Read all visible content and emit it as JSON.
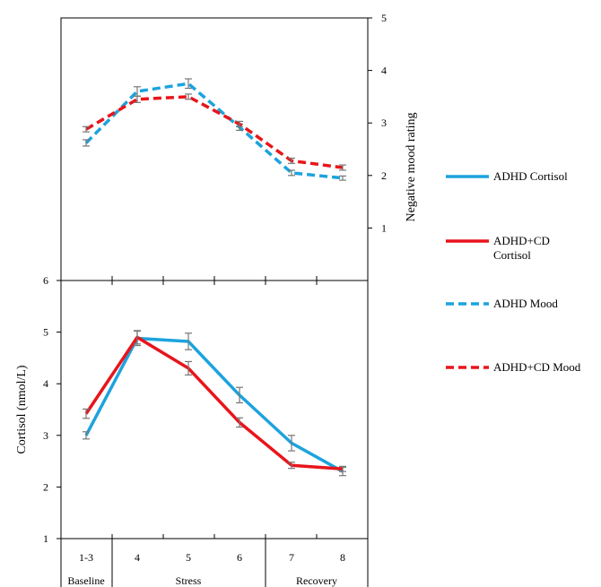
{
  "chart_data": {
    "type": "line",
    "x_positions": [
      "1-3",
      "4",
      "5",
      "6",
      "7",
      "8"
    ],
    "groups": [
      {
        "label": "Baseline",
        "positions": [
          "1-3"
        ]
      },
      {
        "label": "Stress",
        "positions": [
          "4",
          "5",
          "6"
        ]
      },
      {
        "label": "Recovery",
        "positions": [
          "7",
          "8"
        ]
      }
    ],
    "mood_panel": {
      "ylabel": "Negative mood rating",
      "ylim": [
        0,
        5
      ],
      "yticks": [
        "1",
        "2",
        "3",
        "4",
        "5"
      ],
      "y_axis_side": "right",
      "series": [
        {
          "name": "ADHD Mood",
          "color": "#1ca3de",
          "dash": "dashed",
          "values": [
            2.62,
            3.6,
            3.75,
            2.92,
            2.05,
            1.95
          ],
          "errors": [
            0.06,
            0.09,
            0.09,
            0.06,
            0.05,
            0.04
          ]
        },
        {
          "name": "ADHD+CD Mood",
          "color": "#e8151b",
          "dash": "dashed",
          "values": [
            2.88,
            3.45,
            3.5,
            2.98,
            2.28,
            2.15
          ],
          "errors": [
            0.05,
            0.06,
            0.05,
            0.05,
            0.05,
            0.05
          ]
        }
      ]
    },
    "cortisol_panel": {
      "ylabel": "Cortisol (nmol/L)",
      "ylim": [
        1,
        6
      ],
      "yticks": [
        "1",
        "2",
        "3",
        "4",
        "5",
        "6"
      ],
      "y_axis_side": "left",
      "series": [
        {
          "name": "ADHD Cortisol",
          "color": "#1ca3de",
          "dash": "solid",
          "values": [
            3.0,
            4.88,
            4.82,
            3.78,
            2.85,
            2.3
          ],
          "errors": [
            0.07,
            0.14,
            0.16,
            0.15,
            0.15,
            0.08
          ]
        },
        {
          "name": "ADHD+CD Cortisol",
          "color": "#e8151b",
          "dash": "solid",
          "values": [
            3.42,
            4.9,
            4.3,
            3.25,
            2.42,
            2.35
          ],
          "errors": [
            0.09,
            0.13,
            0.13,
            0.09,
            0.06,
            0.05
          ]
        }
      ]
    },
    "legend": {
      "placement": "right",
      "items": [
        {
          "label_lines": [
            "ADHD Cortisol"
          ],
          "color": "#1ca3de",
          "dash": "solid"
        },
        {
          "label_lines": [
            "ADHD+CD",
            "Cortisol"
          ],
          "color": "#e8151b",
          "dash": "solid"
        },
        {
          "label_lines": [
            "ADHD Mood"
          ],
          "color": "#1ca3de",
          "dash": "dashed"
        },
        {
          "label_lines": [
            "ADHD+CD Mood"
          ],
          "color": "#e8151b",
          "dash": "dashed"
        }
      ]
    },
    "grid": false
  }
}
